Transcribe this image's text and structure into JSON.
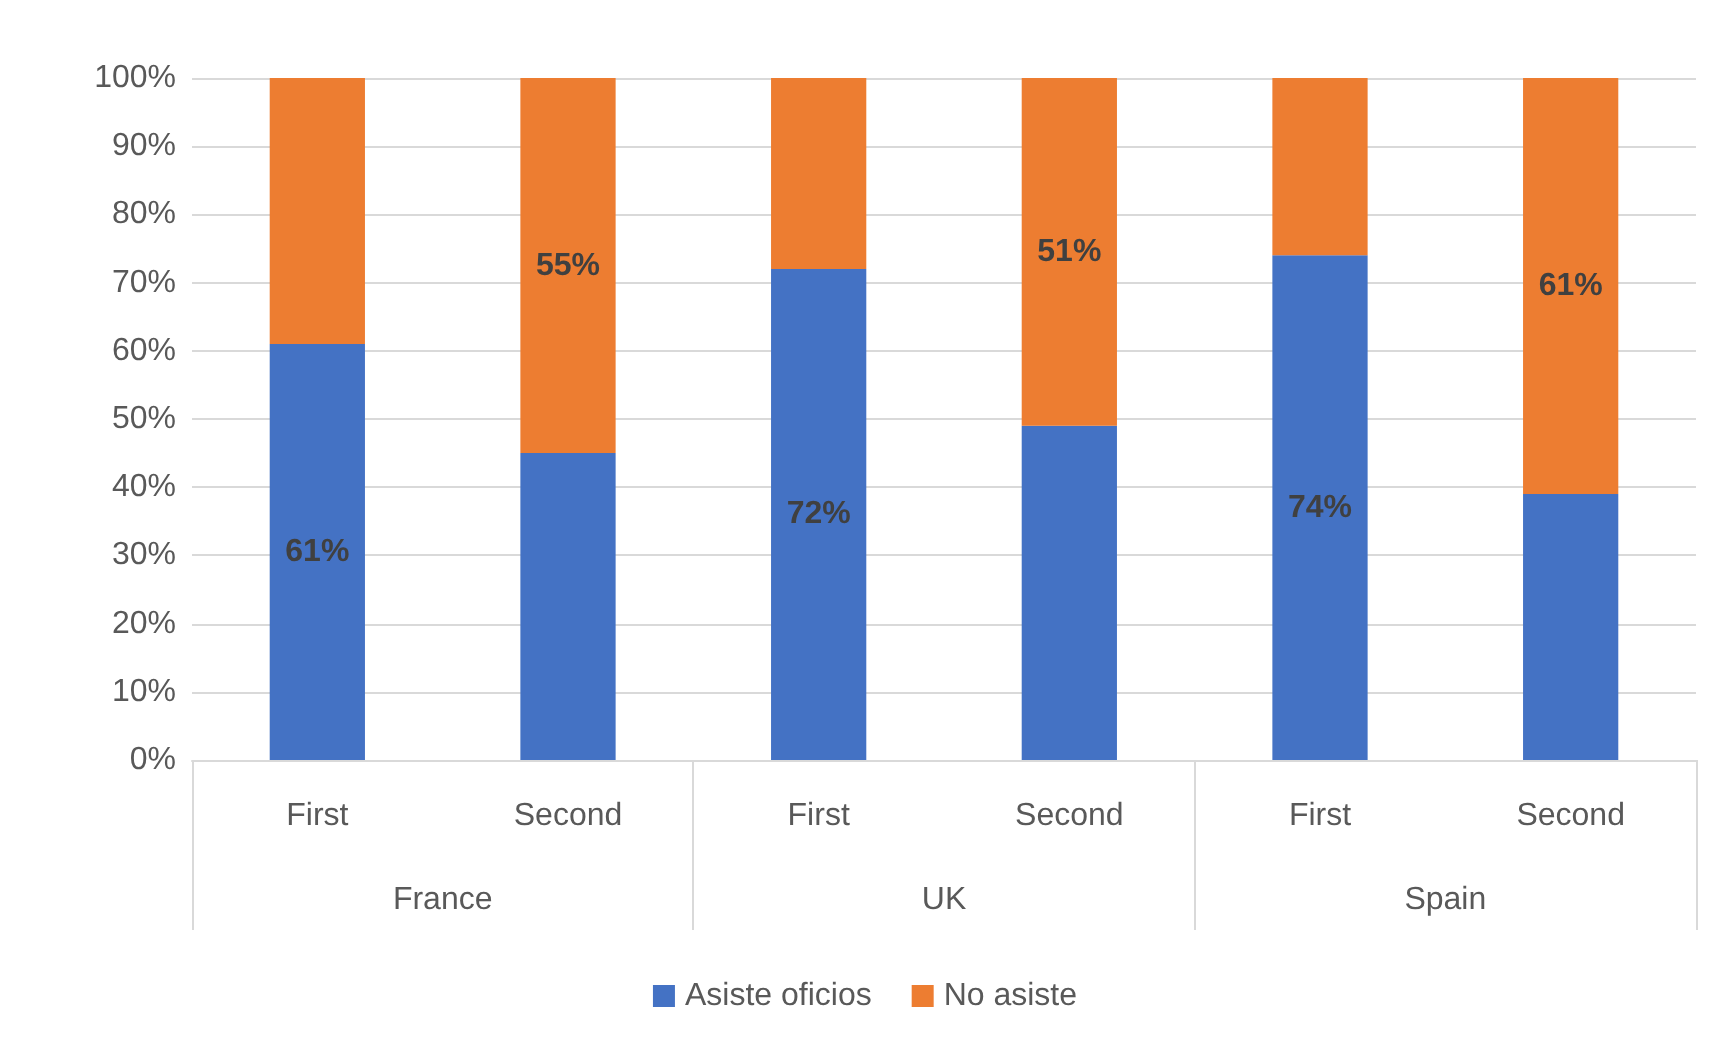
{
  "chart_data": {
    "type": "bar",
    "stacked": true,
    "categories": [
      "First",
      "Second",
      "First",
      "Second",
      "First",
      "Second"
    ],
    "series": [
      {
        "name": "Asiste oficios",
        "color": "#4472c4",
        "values": [
          61,
          45,
          72,
          49,
          74,
          39
        ],
        "value_labels": [
          "61%",
          null,
          "72%",
          null,
          "74%",
          null
        ]
      },
      {
        "name": "No asiste",
        "color": "#ed7d31",
        "values": [
          39,
          55,
          28,
          51,
          26,
          61
        ],
        "value_labels": [
          null,
          "55%",
          null,
          "51%",
          null,
          "61%"
        ]
      }
    ],
    "annotations": [
      "France",
      "UK",
      "Spain"
    ],
    "ylim": [
      0,
      100
    ],
    "yticks": [
      {
        "value": 0,
        "label": "0%"
      },
      {
        "value": 10,
        "label": "10%"
      },
      {
        "value": 20,
        "label": "20%"
      },
      {
        "value": 30,
        "label": "30%"
      },
      {
        "value": 40,
        "label": "40%"
      },
      {
        "value": 50,
        "label": "50%"
      },
      {
        "value": 60,
        "label": "60%"
      },
      {
        "value": 70,
        "label": "70%"
      },
      {
        "value": 80,
        "label": "80%"
      },
      {
        "value": 90,
        "label": "90%"
      },
      {
        "value": 100,
        "label": "100%"
      }
    ],
    "grid": "y",
    "legend": "bottom"
  }
}
